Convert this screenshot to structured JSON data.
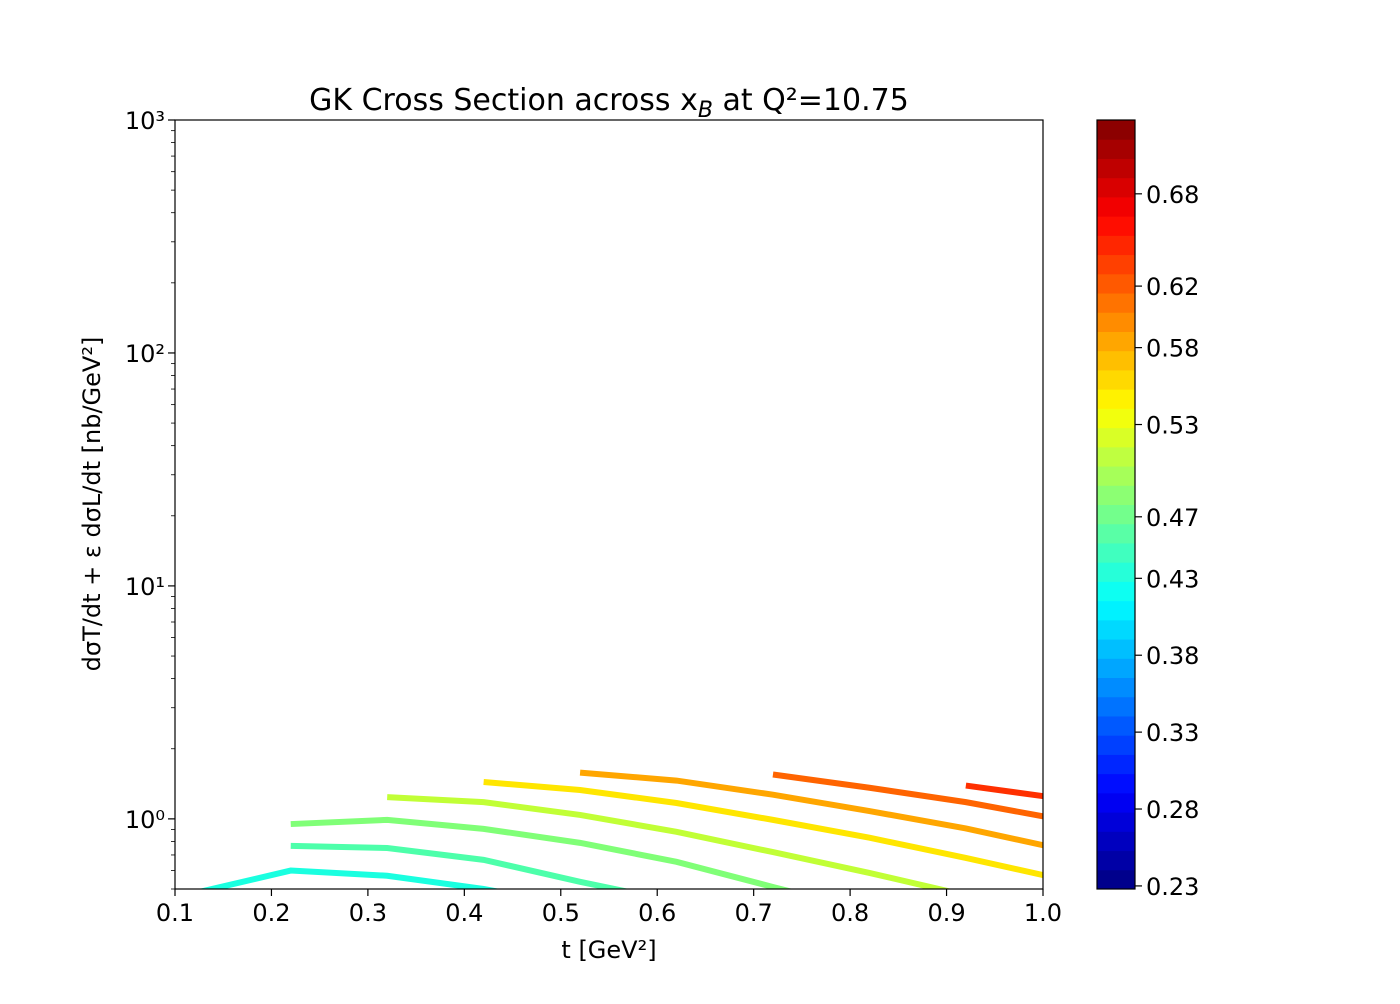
{
  "chart_data": {
    "type": "line",
    "title": "GK Cross Section across xB at Q²=10.75",
    "xlabel": "t [GeV²]",
    "ylabel": "dσT/dt + ε dσL/dt  [nb/GeV²]",
    "xlim": [
      0.1,
      1.0
    ],
    "xticks": [
      0.1,
      0.2,
      0.3,
      0.4,
      0.5,
      0.6,
      0.7,
      0.8,
      0.9,
      {
        "value": 1.0,
        "label": "1.0"
      }
    ],
    "ylim": [
      0.5,
      1000
    ],
    "yscale": "log",
    "yticks": [
      {
        "value": 1,
        "label": "10⁰"
      },
      {
        "value": 10,
        "label": "10¹"
      },
      {
        "value": 100,
        "label": "10²"
      },
      {
        "value": 1000,
        "label": "10³"
      }
    ],
    "colorbar": {
      "colormap": "jet",
      "clim": [
        0.228,
        0.728
      ],
      "ticks": [
        0.23,
        0.28,
        0.33,
        0.38,
        0.43,
        0.47,
        0.53,
        0.58,
        0.62,
        0.68
      ]
    },
    "series": [
      {
        "color": "#1affe0",
        "x": [
          0.12,
          0.22,
          0.32,
          0.42,
          0.52
        ],
        "values": [
          0.48,
          0.6,
          0.57,
          0.5,
          0.42
        ]
      },
      {
        "color": "#4dffaa",
        "x": [
          0.22,
          0.32,
          0.42,
          0.52,
          0.62
        ],
        "values": [
          0.766,
          0.75,
          0.667,
          0.537,
          0.44
        ]
      },
      {
        "color": "#80ff77",
        "x": [
          0.22,
          0.32,
          0.42,
          0.52,
          0.62,
          0.72,
          0.82
        ],
        "values": [
          0.95,
          0.99,
          0.906,
          0.789,
          0.654,
          0.51,
          0.4
        ]
      },
      {
        "color": "#c1ff36",
        "x": [
          0.32,
          0.42,
          0.52,
          0.62,
          0.72,
          0.82,
          0.92
        ],
        "values": [
          1.24,
          1.18,
          1.04,
          0.88,
          0.72,
          0.586,
          0.47
        ]
      },
      {
        "color": "#ffe600",
        "x": [
          0.42,
          0.52,
          0.62,
          0.72,
          0.82,
          0.92,
          1.02
        ],
        "values": [
          1.44,
          1.33,
          1.17,
          0.99,
          0.83,
          0.68,
          0.55
        ]
      },
      {
        "color": "#ffa600",
        "x": [
          0.52,
          0.62,
          0.72,
          0.82,
          0.92,
          1.02
        ],
        "values": [
          1.58,
          1.46,
          1.27,
          1.08,
          0.91,
          0.74
        ]
      },
      {
        "color": "#ff6400",
        "x": [
          0.72,
          0.82,
          0.92,
          1.02
        ],
        "values": [
          1.55,
          1.36,
          1.18,
          0.99
        ]
      },
      {
        "color": "#ff3000",
        "x": [
          0.92,
          1.02
        ],
        "values": [
          1.39,
          1.22
        ]
      }
    ]
  }
}
